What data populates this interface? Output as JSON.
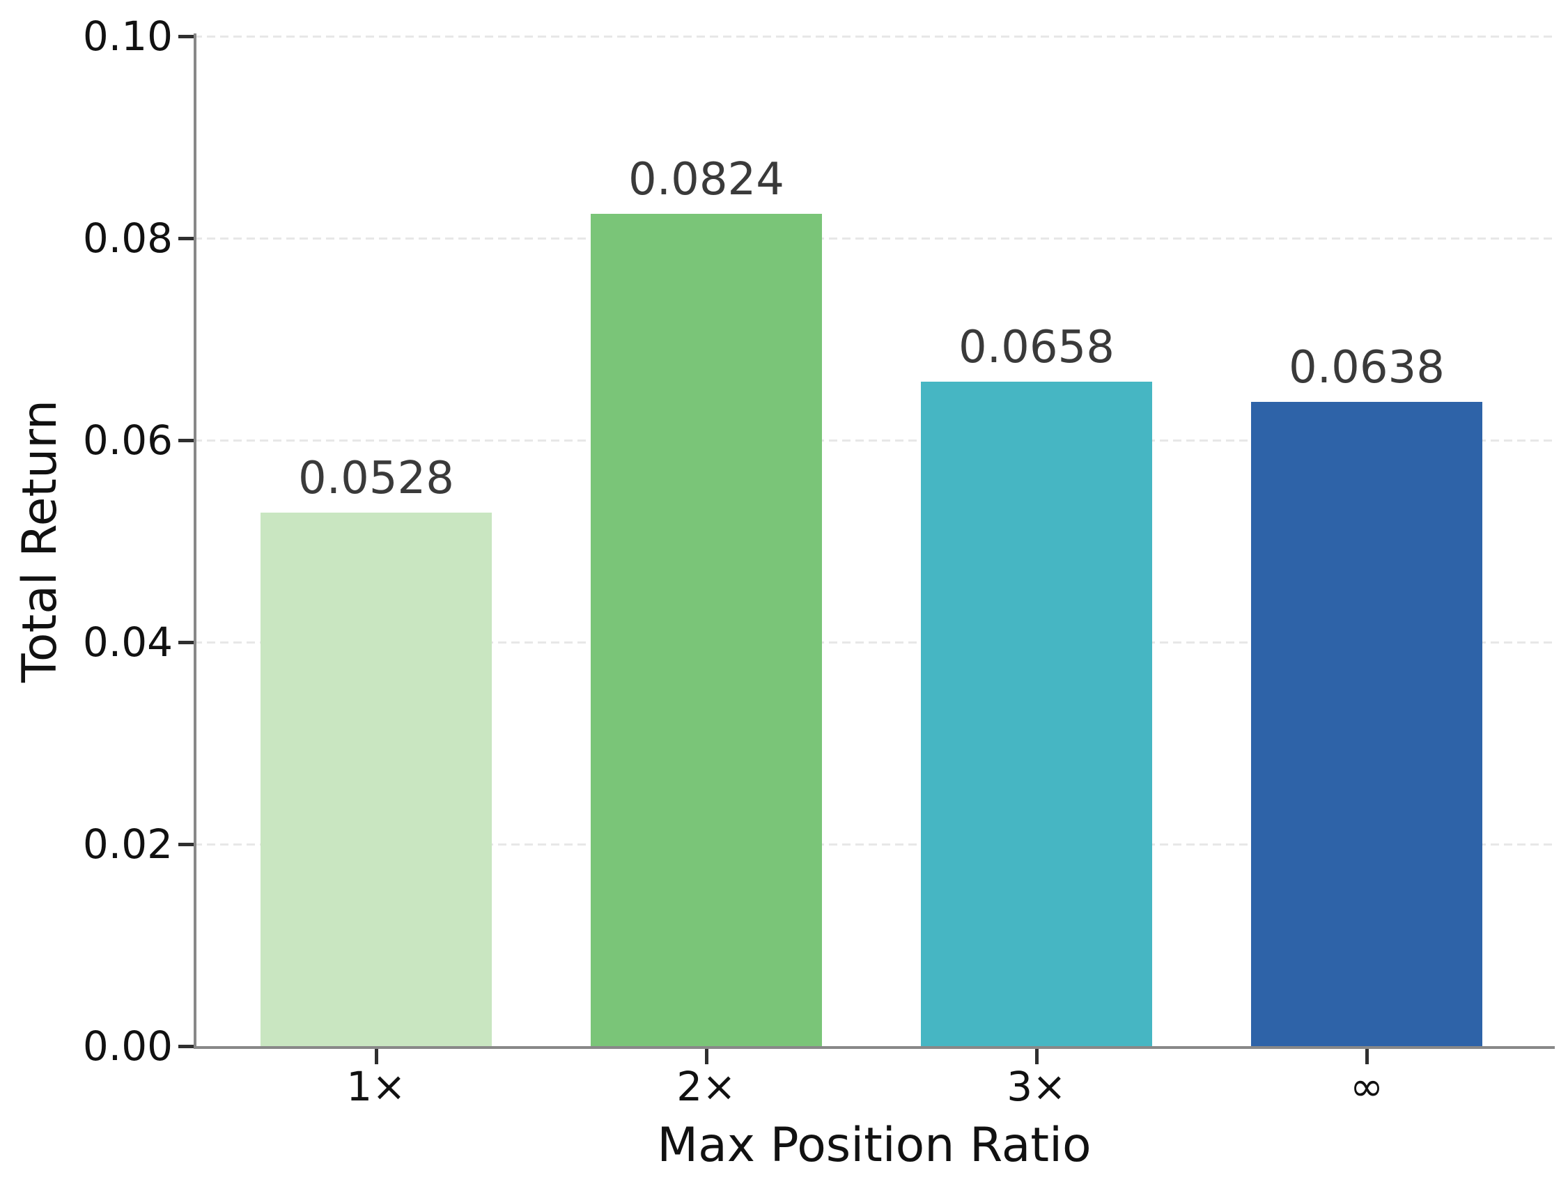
{
  "chart_data": {
    "type": "bar",
    "title": "",
    "xlabel": "Max Position Ratio",
    "ylabel": "Total Return",
    "categories": [
      "1×",
      "2×",
      "3×",
      "∞"
    ],
    "values": [
      0.0528,
      0.0824,
      0.0658,
      0.0638
    ],
    "value_labels": [
      "0.0528",
      "0.0824",
      "0.0658",
      "0.0638"
    ],
    "bar_colors": [
      "#c9e6c1",
      "#7ac578",
      "#46b6c3",
      "#2e63a8"
    ],
    "ylim": [
      0.0,
      0.1
    ],
    "yticks": [
      {
        "value": 0.0,
        "label": "0.00"
      },
      {
        "value": 0.02,
        "label": "0.02"
      },
      {
        "value": 0.04,
        "label": "0.04"
      },
      {
        "value": 0.06,
        "label": "0.06"
      },
      {
        "value": 0.08,
        "label": "0.08"
      },
      {
        "value": 0.1,
        "label": "0.10"
      }
    ],
    "grid": "horizontal-dashed",
    "legend": "none",
    "style": {
      "grid_color": "#e7e7e7",
      "spine_color": "#888888",
      "tick_color": "#2f2f2f",
      "text_color": "#111111",
      "value_label_color": "#3a3a3a",
      "background": "#ffffff"
    }
  }
}
